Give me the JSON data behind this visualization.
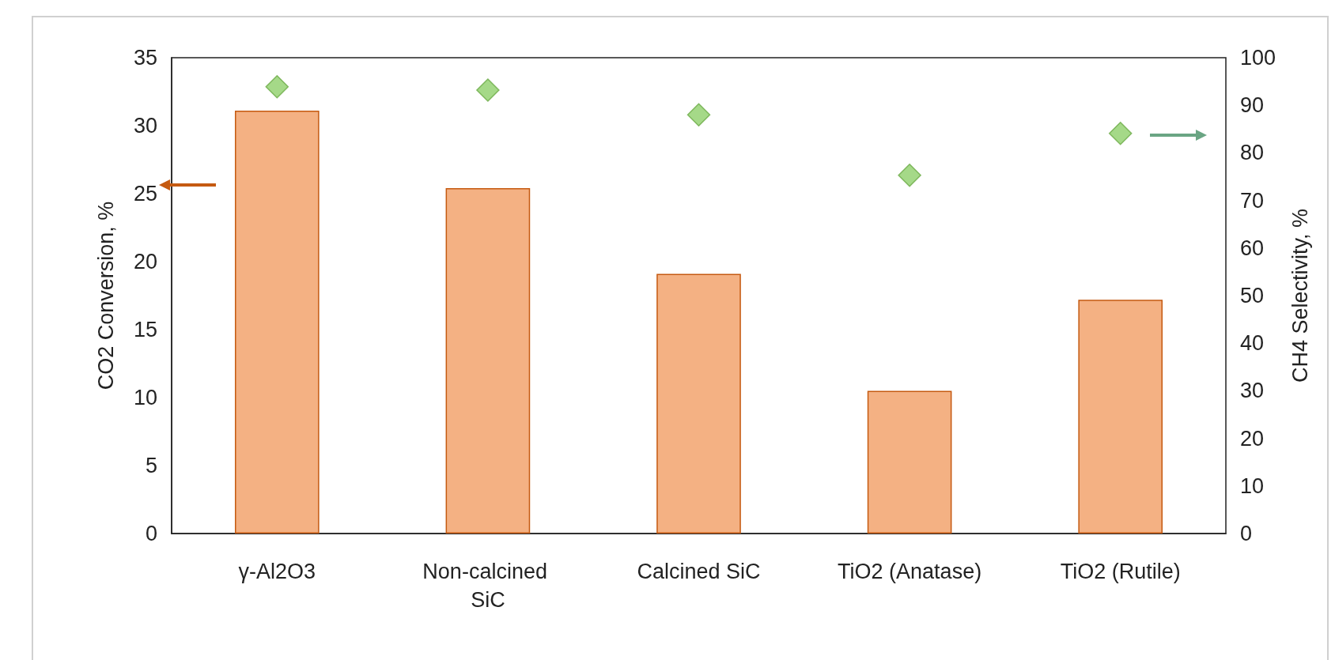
{
  "chart_data": {
    "type": "bar",
    "ylabel": "CO2 Conversion, %",
    "y2label": "CH4 Selectivity, %",
    "categories": [
      "γ-Al2O3",
      "Non-calcined SiC",
      "Calcined SiC",
      "TiO2 (Anatase)",
      "TiO2 (Rutile)"
    ],
    "series": [
      {
        "type": "bar",
        "color": "#f4b183",
        "values": [
          31.1,
          25.4,
          19.1,
          10.5,
          17.2
        ]
      },
      {
        "type": "scatter",
        "axis": "y2",
        "marker": "diamond",
        "color": "#8fcf6a",
        "values": [
          93.9,
          93.2,
          88.0,
          75.3,
          84.1
        ]
      }
    ],
    "ylim": [
      0,
      35
    ],
    "yticks": [
      0,
      5,
      10,
      15,
      20,
      25,
      30,
      35
    ],
    "y2lim": [
      0,
      100
    ],
    "y2ticks": [
      0,
      10,
      20,
      30,
      40,
      50,
      60,
      70,
      80,
      90,
      100
    ],
    "grid": false
  }
}
